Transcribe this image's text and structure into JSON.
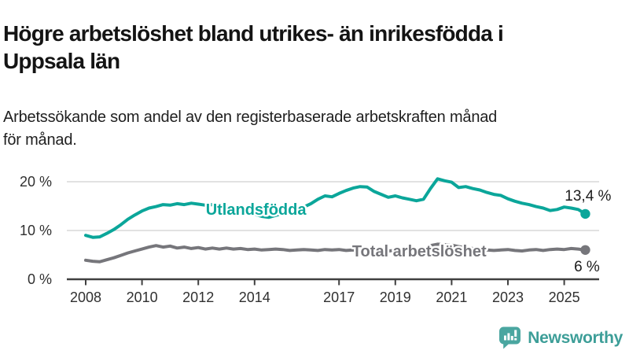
{
  "header": {
    "title_lines": [
      "Högre arbetslöshet bland utrikes- än inrikesfödda i",
      "Uppsala län"
    ],
    "subtitle_lines": [
      "Arbetssökande som andel av den registerbaserade arbetskraften månad",
      "för månad."
    ]
  },
  "footer": {
    "brand": "Newsworthy",
    "brand_color": "#3d9e98",
    "logo_icon": "bar-chart-speech-bubble"
  },
  "colors": {
    "foreign_born_line": "#0ba69a",
    "total_line": "#76767b",
    "grid": "#d9d9d9",
    "axis": "#404040",
    "tick_text": "#303030",
    "value_label_text": "#1c1c1c"
  },
  "chart_data": {
    "type": "line",
    "unit": "%",
    "title": "Högre arbetslöshet bland utrikes- än inrikesfödda i Uppsala län",
    "subtitle": "Arbetssökande som andel av den registerbaserade arbetskraften månad för månad.",
    "x_start": 2008.0,
    "x_step": 0.25,
    "x_end": 2025.75,
    "xticks": [
      2008,
      2010,
      2012,
      2014,
      2017,
      2019,
      2021,
      2023,
      2025
    ],
    "yticks": [
      {
        "value": 0,
        "label": "0 %"
      },
      {
        "value": 10,
        "label": "10 %"
      },
      {
        "value": 20,
        "label": "20 %"
      }
    ],
    "ylim": [
      0,
      22
    ],
    "grid": true,
    "legend_position": "inline-labels",
    "series": [
      {
        "name": "Utlandsfödda",
        "color": "#0ba69a",
        "end_label": "13,4 %",
        "end_value": 13.4,
        "label_anchor": {
          "year": 2014.05,
          "value": 13.2
        },
        "values": [
          9.0,
          8.6,
          8.7,
          9.4,
          10.2,
          11.2,
          12.3,
          13.2,
          14.0,
          14.6,
          14.9,
          15.3,
          15.2,
          15.5,
          15.3,
          15.6,
          15.4,
          15.2,
          15.3,
          15.0,
          15.0,
          14.6,
          14.1,
          13.7,
          13.3,
          12.9,
          12.7,
          13.1,
          13.5,
          13.9,
          14.3,
          14.8,
          15.5,
          16.4,
          17.1,
          16.9,
          17.6,
          18.2,
          18.7,
          19.0,
          18.9,
          18.0,
          17.4,
          16.8,
          17.1,
          16.7,
          16.4,
          16.1,
          16.4,
          18.6,
          20.6,
          20.2,
          19.9,
          18.8,
          19.0,
          18.6,
          18.3,
          17.8,
          17.4,
          17.2,
          16.5,
          16.0,
          15.6,
          15.3,
          14.9,
          14.6,
          14.1,
          14.3,
          14.8,
          14.6,
          14.3,
          13.4
        ]
      },
      {
        "name": "Total arbetslöshet",
        "color": "#76767b",
        "end_label": "6 %",
        "end_value": 6.0,
        "label_anchor": {
          "year": 2019.85,
          "value": 4.7
        },
        "values": [
          3.9,
          3.7,
          3.6,
          4.0,
          4.4,
          4.9,
          5.4,
          5.8,
          6.2,
          6.6,
          6.9,
          6.6,
          6.8,
          6.4,
          6.6,
          6.3,
          6.5,
          6.2,
          6.4,
          6.2,
          6.4,
          6.2,
          6.3,
          6.1,
          6.2,
          6.0,
          6.1,
          6.2,
          6.1,
          5.9,
          6.0,
          6.1,
          6.0,
          5.9,
          6.1,
          6.0,
          6.1,
          5.9,
          6.0,
          5.9,
          6.0,
          5.8,
          5.7,
          5.8,
          5.9,
          5.7,
          5.8,
          5.9,
          6.1,
          6.9,
          7.2,
          7.1,
          7.0,
          6.7,
          6.5,
          6.3,
          6.2,
          6.0,
          5.9,
          6.0,
          6.1,
          5.9,
          5.8,
          6.0,
          6.1,
          5.9,
          6.1,
          6.2,
          6.1,
          6.3,
          6.2,
          6.0
        ]
      }
    ]
  }
}
